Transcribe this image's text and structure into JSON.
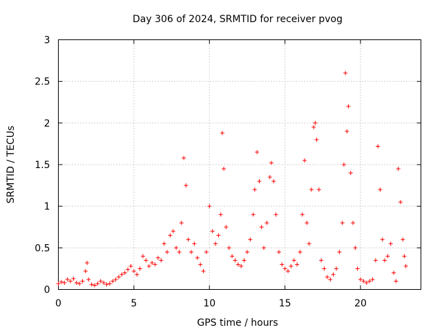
{
  "colors": {
    "series": "#ff0000",
    "axis": "#000000",
    "grid": "#a0a0a0"
  },
  "chart_data": {
    "type": "scatter",
    "title": "Day 306 of 2024, SRMTID for receiver pvog",
    "xlabel": "GPS time / hours",
    "ylabel": "SRMTID / TECUs",
    "xlim": [
      0,
      24
    ],
    "ylim": [
      0,
      3
    ],
    "xticks": [
      0,
      5,
      10,
      15,
      20
    ],
    "xtick_labels": [
      "0",
      "5",
      "10",
      "15",
      "20"
    ],
    "yticks": [
      0,
      0.5,
      1,
      1.5,
      2,
      2.5,
      3
    ],
    "ytick_labels": [
      "0",
      "0.5",
      "1",
      "1.5",
      "2",
      "2.5",
      "3"
    ],
    "grid": true,
    "marker": "+",
    "series": [
      {
        "name": "SRMTID",
        "x": [
          0.0,
          0.2,
          0.4,
          0.6,
          0.8,
          1.0,
          1.2,
          1.4,
          1.6,
          1.8,
          1.9,
          2.0,
          2.2,
          2.4,
          2.6,
          2.8,
          3.0,
          3.2,
          3.4,
          3.6,
          3.8,
          4.0,
          4.2,
          4.4,
          4.6,
          4.8,
          5.0,
          5.2,
          5.4,
          5.6,
          5.8,
          6.0,
          6.2,
          6.4,
          6.6,
          6.8,
          7.0,
          7.2,
          7.4,
          7.6,
          7.8,
          8.0,
          8.15,
          8.3,
          8.45,
          8.6,
          8.8,
          9.0,
          9.2,
          9.4,
          9.6,
          9.8,
          10.0,
          10.2,
          10.4,
          10.6,
          10.75,
          10.85,
          10.95,
          11.1,
          11.3,
          11.5,
          11.7,
          11.9,
          12.1,
          12.3,
          12.5,
          12.7,
          12.9,
          13.0,
          13.15,
          13.3,
          13.45,
          13.6,
          13.8,
          14.0,
          14.1,
          14.25,
          14.4,
          14.6,
          14.8,
          15.0,
          15.2,
          15.4,
          15.6,
          15.8,
          16.0,
          16.15,
          16.3,
          16.45,
          16.6,
          16.75,
          16.9,
          17.0,
          17.1,
          17.25,
          17.4,
          17.6,
          17.8,
          18.0,
          18.2,
          18.4,
          18.6,
          18.8,
          18.9,
          19.0,
          19.1,
          19.2,
          19.35,
          19.5,
          19.65,
          19.8,
          20.0,
          20.2,
          20.4,
          20.6,
          20.8,
          21.0,
          21.15,
          21.3,
          21.45,
          21.6,
          21.8,
          22.0,
          22.2,
          22.35,
          22.5,
          22.65,
          22.8,
          22.9,
          23.0
        ],
        "y": [
          0.07,
          0.09,
          0.08,
          0.12,
          0.1,
          0.13,
          0.08,
          0.07,
          0.1,
          0.22,
          0.32,
          0.12,
          0.06,
          0.05,
          0.07,
          0.1,
          0.08,
          0.06,
          0.07,
          0.1,
          0.12,
          0.15,
          0.18,
          0.2,
          0.24,
          0.28,
          0.22,
          0.18,
          0.25,
          0.4,
          0.35,
          0.28,
          0.32,
          0.3,
          0.38,
          0.35,
          0.55,
          0.45,
          0.65,
          0.7,
          0.5,
          0.45,
          0.8,
          1.58,
          1.25,
          0.6,
          0.45,
          0.55,
          0.38,
          0.3,
          0.22,
          0.45,
          1.0,
          0.7,
          0.55,
          0.65,
          0.9,
          1.88,
          1.45,
          0.75,
          0.5,
          0.4,
          0.35,
          0.3,
          0.28,
          0.35,
          0.45,
          0.6,
          0.9,
          1.2,
          1.65,
          1.3,
          0.75,
          0.5,
          0.8,
          1.35,
          1.52,
          1.3,
          0.9,
          0.45,
          0.3,
          0.25,
          0.22,
          0.28,
          0.35,
          0.3,
          0.45,
          0.9,
          1.55,
          0.8,
          0.55,
          1.2,
          1.95,
          2.0,
          1.8,
          1.2,
          0.35,
          0.25,
          0.15,
          0.12,
          0.18,
          0.25,
          0.45,
          0.8,
          1.5,
          2.6,
          1.9,
          2.2,
          1.4,
          0.8,
          0.5,
          0.25,
          0.12,
          0.1,
          0.08,
          0.1,
          0.12,
          0.35,
          1.72,
          1.2,
          0.6,
          0.35,
          0.4,
          0.55,
          0.2,
          0.1,
          1.45,
          1.05,
          0.6,
          0.4,
          0.28
        ]
      }
    ]
  }
}
